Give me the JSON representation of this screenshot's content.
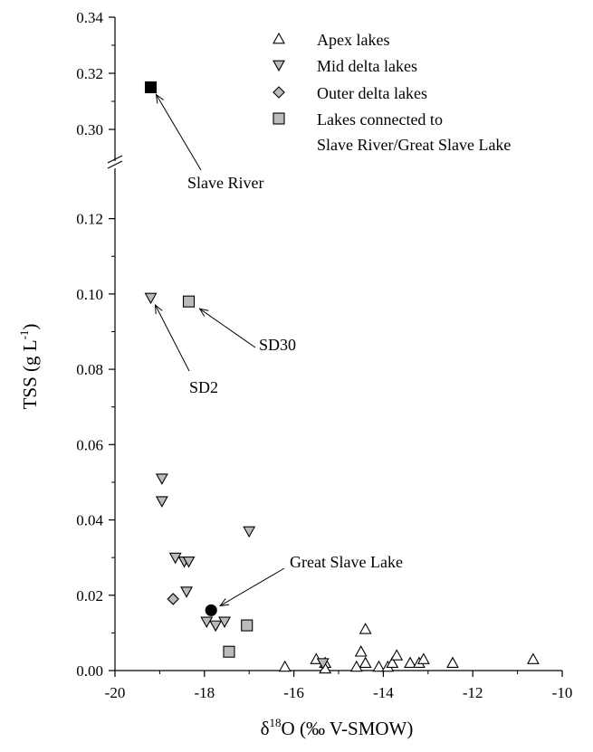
{
  "chart_data": {
    "type": "scatter",
    "title": "",
    "xlabel": "δ18O (‰ V-SMOW)",
    "xlabel_parts": {
      "delta": "δ",
      "sup": "18",
      "rest": "O (‰ V-SMOW)"
    },
    "ylabel": "TSS (g L-1)",
    "ylabel_parts": {
      "main": "TSS (g L",
      "sup": "-1",
      "close": ")"
    },
    "xlim": [
      -20,
      -10
    ],
    "x_ticks": [
      -20,
      -18,
      -16,
      -14,
      -12,
      -10
    ],
    "y_lower_range": [
      0,
      0.13
    ],
    "y_upper_range": [
      0.29,
      0.34
    ],
    "y_ticks_lower": [
      0.0,
      0.02,
      0.04,
      0.06,
      0.08,
      0.1,
      0.12
    ],
    "y_ticks_upper": [
      0.3,
      0.32,
      0.34
    ],
    "y_axis_broken": true,
    "grid": false,
    "legend_position": "top-right",
    "series": [
      {
        "name": "Apex lakes",
        "marker": "triangle-up",
        "fill": "#ffffff",
        "points": [
          [
            -16.2,
            0.001
          ],
          [
            -15.5,
            0.003
          ],
          [
            -15.3,
            0.002
          ],
          [
            -15.3,
            0.0005
          ],
          [
            -14.6,
            0.001
          ],
          [
            -14.5,
            0.005
          ],
          [
            -14.4,
            0.011
          ],
          [
            -14.4,
            0.002
          ],
          [
            -14.1,
            0.001
          ],
          [
            -13.9,
            0.001
          ],
          [
            -13.8,
            0.002
          ],
          [
            -13.7,
            0.004
          ],
          [
            -13.4,
            0.002
          ],
          [
            -13.2,
            0.002
          ],
          [
            -13.1,
            0.003
          ],
          [
            -12.45,
            0.002
          ],
          [
            -10.65,
            0.003
          ]
        ]
      },
      {
        "name": "Mid delta lakes",
        "marker": "triangle-down",
        "fill": "#bbbbbb",
        "points": [
          [
            -19.2,
            0.099
          ],
          [
            -18.95,
            0.051
          ],
          [
            -18.95,
            0.045
          ],
          [
            -18.65,
            0.03
          ],
          [
            -18.45,
            0.029
          ],
          [
            -18.35,
            0.029
          ],
          [
            -18.4,
            0.021
          ],
          [
            -17.0,
            0.037
          ],
          [
            -17.95,
            0.013
          ],
          [
            -17.75,
            0.012
          ],
          [
            -17.55,
            0.013
          ],
          [
            -15.35,
            0.002
          ]
        ]
      },
      {
        "name": "Outer delta lakes",
        "marker": "diamond",
        "fill": "#bbbbbb",
        "points": [
          [
            -18.7,
            0.019
          ]
        ]
      },
      {
        "name": "Lakes connected to Slave River/Great Slave Lake",
        "legend_lines": [
          "Lakes connected to",
          "Slave River/Great Slave Lake"
        ],
        "marker": "square",
        "fill": "#bbbbbb",
        "points": [
          [
            -18.35,
            0.098
          ],
          [
            -17.05,
            0.012
          ],
          [
            -17.45,
            0.005
          ]
        ]
      }
    ],
    "special_points": [
      {
        "label": "Slave River",
        "marker": "square",
        "fill": "#000000",
        "x": -19.2,
        "y": 0.315
      },
      {
        "label": "Great Slave Lake",
        "marker": "circle",
        "fill": "#000000",
        "x": -17.85,
        "y": 0.016
      }
    ],
    "annotations": [
      {
        "label": "Slave River",
        "x": -19.2,
        "y": 0.315
      },
      {
        "label": "SD2",
        "x": -19.2,
        "y": 0.099
      },
      {
        "label": "SD30",
        "x": -18.35,
        "y": 0.098
      },
      {
        "label": "Great Slave Lake",
        "x": -17.85,
        "y": 0.016
      }
    ]
  }
}
